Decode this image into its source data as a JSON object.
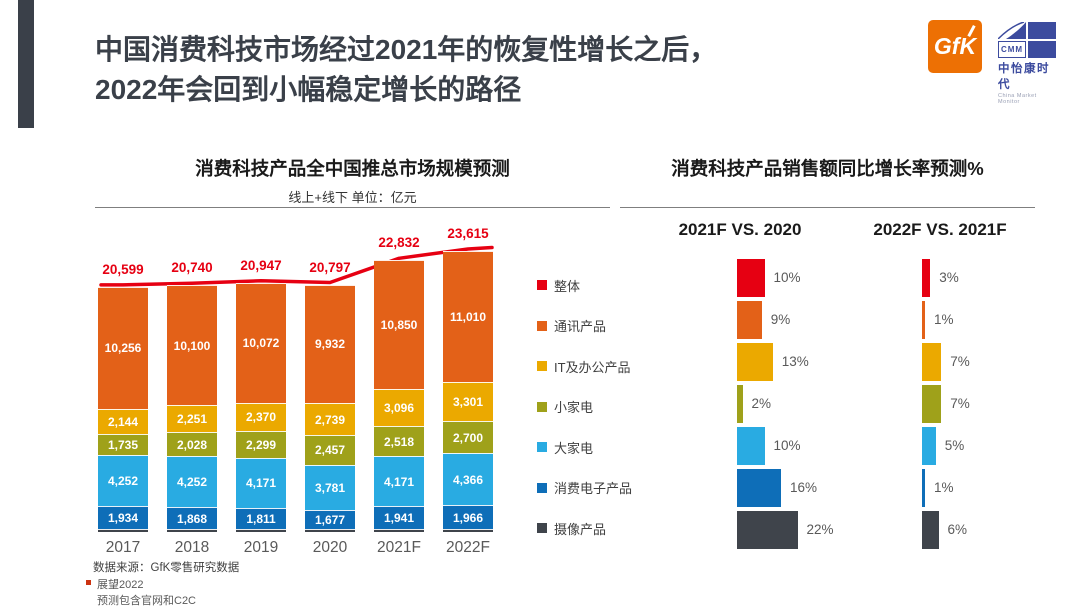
{
  "header": {
    "title_line1": "中国消费科技市场经过2021年的恢复性增长之后，",
    "title_line2": "2022年会回到小幅稳定增长的路径",
    "gfk_logo_text": "GfK",
    "cmm_logo_abbr": "CMM",
    "cmm_logo_name": "中怡康时代",
    "cmm_logo_sub": "China Market Monitor",
    "gfk_orange": "#ed7004",
    "cmm_blue": "#3c4b9e",
    "accent_color": "#3a4049"
  },
  "left_chart": {
    "title": "消费科技产品全中国推总市场规模预测",
    "subtitle": "线上+线下 单位：亿元"
  },
  "right_chart": {
    "title": "消费科技产品销售额同比增长率预测%",
    "col1_header": "2021F VS. 2020",
    "col2_header": "2022F VS. 2021F"
  },
  "legend": [
    {
      "label": "整体",
      "color": "#e60012"
    },
    {
      "label": "通讯产品",
      "color": "#e36118"
    },
    {
      "label": "IT及办公产品",
      "color": "#eba900"
    },
    {
      "label": "小家电",
      "color": "#9fa11a"
    },
    {
      "label": "大家电",
      "color": "#29abe2"
    },
    {
      "label": "消费电子产品",
      "color": "#0e6eb8"
    },
    {
      "label": "摄像产品",
      "color": "#3f444b"
    }
  ],
  "chart_data": [
    {
      "type": "bar",
      "subtype": "stacked_columns_with_total_line",
      "title": "消费科技产品全中国推总市场规模预测",
      "subtitle": "线上+线下 单位：亿元",
      "ylabel": "亿元",
      "categories": [
        "2017",
        "2018",
        "2019",
        "2020",
        "2021F",
        "2022F"
      ],
      "series": [
        {
          "name": "通讯产品",
          "color": "#e36118",
          "values": [
            10256,
            10100,
            10072,
            9932,
            10850,
            11010
          ]
        },
        {
          "name": "IT及办公产品",
          "color": "#eba900",
          "values": [
            2144,
            2251,
            2370,
            2739,
            3096,
            3301
          ]
        },
        {
          "name": "小家电",
          "color": "#9fa11a",
          "values": [
            1735,
            2028,
            2299,
            2457,
            2518,
            2700
          ]
        },
        {
          "name": "大家电",
          "color": "#29abe2",
          "values": [
            4252,
            4252,
            4171,
            3781,
            4171,
            4366
          ]
        },
        {
          "name": "消费电子产品",
          "color": "#0e6eb8",
          "values": [
            1934,
            1868,
            1811,
            1677,
            1941,
            1966
          ]
        },
        {
          "name": "摄像产品",
          "color": "#3f444b",
          "values": null,
          "note": "unlabeled thin segment, derived as total minus labeled segments"
        }
      ],
      "total_line": {
        "name": "整体",
        "color": "#e60012",
        "values": [
          20599,
          20740,
          20947,
          20797,
          22832,
          23615
        ]
      },
      "legend_position": "right",
      "grid": false
    },
    {
      "type": "bar",
      "orientation": "horizontal",
      "title": "消费科技产品销售额同比增长率预测%",
      "unit": "%",
      "categories": [
        "整体",
        "通讯产品",
        "IT及办公产品",
        "小家电",
        "大家电",
        "消费电子产品",
        "摄像产品"
      ],
      "series": [
        {
          "name": "2021F VS. 2020",
          "values": [
            10,
            9,
            13,
            2,
            10,
            16,
            22
          ]
        },
        {
          "name": "2022F VS. 2021F",
          "values": [
            3,
            1,
            7,
            7,
            5,
            1,
            6
          ]
        }
      ],
      "grid": false
    }
  ],
  "footer": {
    "source": "数据来源：GfK零售研究数据",
    "note1": "展望2022",
    "note2": "预测包含官网和C2C"
  }
}
